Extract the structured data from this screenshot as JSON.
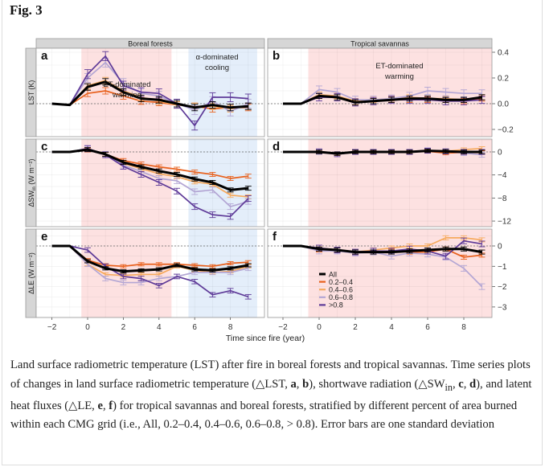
{
  "figure": {
    "title": "Fig. 3",
    "caption_parts": [
      "Land surface radiometric temperature (LST) after fire in boreal forests and tropical savannas. Time series plots of changes in land surface radiometric temperature (△LST, ",
      "a",
      ", ",
      "b",
      "), shortwave radiation (△SW",
      "in",
      ", ",
      "c",
      ", ",
      "d",
      "), and latent heat fluxes (△LE, ",
      "e",
      ", ",
      "f",
      ") for tropical savannas and boreal forests, stratified by different percent of area burned within each CMG grid (i.e., All, 0.2–0.4, 0.4–0.6, 0.6–0.8, > 0.8). Error bars are one standard deviation"
    ]
  },
  "chart_data": {
    "type": "line",
    "xlabel": "Time since fire (year)",
    "x": [
      -2,
      -1,
      0,
      1,
      2,
      3,
      4,
      5,
      6,
      7,
      8,
      9
    ],
    "x_ticks": [
      -2,
      0,
      2,
      4,
      6,
      8
    ],
    "x_tick_labels": [
      "−2",
      "0",
      "2",
      "4",
      "6",
      "8"
    ],
    "xlim": [
      -2.9,
      9.9
    ],
    "columns": [
      "Boreal forests",
      "Tropical savannas"
    ],
    "legend": {
      "placement": "inside panel f, lower-left",
      "entries": [
        {
          "name": "All",
          "color": "#000000"
        },
        {
          "name": "0.2–0.4",
          "color": "#e8601c"
        },
        {
          "name": "0.4–0.6",
          "color": "#f6aa5e"
        },
        {
          "name": "0.6–0.8",
          "color": "#b3a6d4"
        },
        {
          "name": ">0.8",
          "color": "#5e3a98"
        }
      ]
    },
    "shading": {
      "pink_color": "#fde1e1",
      "blue_color": "#e4eefa",
      "boreal_pink_range": [
        -0.35,
        4.7
      ],
      "boreal_blue_range": [
        5.65,
        9.5
      ],
      "savanna_pink_range": [
        -0.6,
        9.7
      ]
    },
    "rows": [
      {
        "ylabel": "LST (K)",
        "ylim": [
          -0.26,
          0.43
        ],
        "y_ticks": [
          0.4,
          0.2,
          0.0,
          -0.2
        ],
        "y_tick_labels": [
          "0.4",
          "0.2",
          "0.0",
          "−0.2"
        ],
        "panels": [
          {
            "letter": "a",
            "annotations": [
              {
                "lines": [
                  "ET-dominated",
                  "warming"
                ]
              },
              {
                "lines": [
                  "α-dominated",
                  "cooling"
                ]
              }
            ],
            "err": 0.025,
            "series": {
              "All": [
                0,
                -0.01,
                0.13,
                0.17,
                0.09,
                0.04,
                0.03,
                0.0,
                -0.03,
                -0.01,
                -0.03,
                -0.02
              ],
              "0.2–0.4": [
                0,
                -0.01,
                0.08,
                0.1,
                0.06,
                0.02,
                0.01,
                -0.01,
                -0.02,
                -0.04,
                -0.03,
                -0.03
              ],
              "0.4–0.6": [
                0,
                -0.01,
                0.14,
                0.18,
                0.1,
                0.05,
                0.02,
                -0.01,
                -0.02,
                -0.02,
                -0.04,
                -0.02
              ],
              "0.6–0.8": [
                0,
                -0.01,
                0.2,
                0.32,
                0.16,
                0.08,
                0.06,
                0.0,
                -0.05,
                0.02,
                -0.06,
                0.0
              ],
              ">0.8": [
                0,
                -0.01,
                0.23,
                0.37,
                0.14,
                0.09,
                0.08,
                0.0,
                -0.17,
                0.05,
                0.05,
                0.04
              ]
            }
          },
          {
            "letter": "b",
            "annotations": [
              {
                "lines": [
                  "ET-dominated",
                  "warming"
                ]
              }
            ],
            "err": 0.02,
            "series": {
              "All": [
                0,
                0,
                0.06,
                0.05,
                0.01,
                0.02,
                0.03,
                0.04,
                0.04,
                0.03,
                0.03,
                0.05
              ],
              "0.2–0.4": [
                0,
                0,
                0.06,
                0.06,
                0.01,
                0.02,
                0.03,
                0.03,
                0.03,
                0.03,
                0.02,
                0.04
              ],
              "0.4–0.6": [
                0,
                0,
                0.07,
                0.06,
                0.02,
                0.03,
                0.04,
                0.05,
                0.04,
                0.04,
                0.03,
                0.05
              ],
              "0.6–0.8": [
                0,
                0,
                0.11,
                0.09,
                0.03,
                0.03,
                0.04,
                0.06,
                0.1,
                0.09,
                0.08,
                0.08
              ],
              ">0.8": [
                0,
                0,
                0.05,
                0.05,
                0.01,
                0.02,
                0.03,
                0.03,
                0.03,
                0.02,
                0.02,
                0.03
              ]
            }
          }
        ]
      },
      {
        "ylabel": "ΔSW",
        "ylabel_sub": "in",
        "ylabel_unit": " (W m⁻²)",
        "ylim": [
          -13.2,
          2.3
        ],
        "y_ticks": [
          0,
          -4,
          -8,
          -12
        ],
        "y_tick_labels": [
          "0",
          "−4",
          "−8",
          "−12"
        ],
        "panels": [
          {
            "letter": "c",
            "err": 0.35,
            "series": {
              "All": [
                0,
                0,
                0.4,
                -0.4,
                -1.8,
                -2.6,
                -3.3,
                -3.9,
                -4.7,
                -5.3,
                -6.6,
                -6.3
              ],
              "0.2–0.4": [
                0,
                0,
                0.3,
                -0.4,
                -1.5,
                -2.1,
                -2.6,
                -3.0,
                -3.5,
                -3.9,
                -4.6,
                -4.2
              ],
              "0.4–0.6": [
                0,
                0,
                0.4,
                -0.4,
                -2.0,
                -2.9,
                -3.8,
                -4.3,
                -5.2,
                -5.6,
                -7.5,
                -7.8
              ],
              "0.6–0.8": [
                0,
                0,
                0.5,
                -0.4,
                -2.3,
                -3.4,
                -4.6,
                -5.0,
                -6.9,
                -6.6,
                -9.5,
                -8.6
              ],
              ">0.8": [
                0,
                0,
                0.6,
                -0.5,
                -2.5,
                -3.9,
                -5.3,
                -6.8,
                -9.5,
                -10.9,
                -11.2,
                -8.1
              ]
            }
          },
          {
            "letter": "d",
            "err": 0.3,
            "series": {
              "All": [
                0,
                0,
                0,
                -0.3,
                0,
                0,
                0,
                0,
                0.2,
                0.1,
                0,
                0
              ],
              "0.2–0.4": [
                0,
                0,
                0,
                -0.3,
                0,
                0,
                0,
                0,
                0.1,
                -0.2,
                -0.1,
                -0.1
              ],
              "0.4–0.6": [
                0,
                0,
                0.1,
                -0.3,
                0,
                0,
                0,
                0,
                0.2,
                0.1,
                0.4,
                0.6
              ],
              "0.6–0.8": [
                0,
                0,
                0,
                -0.4,
                0,
                0,
                0,
                0,
                0.3,
                0.1,
                -0.2,
                -0.5
              ],
              ">0.8": [
                0,
                0,
                0.1,
                -0.4,
                0,
                0,
                0,
                0,
                0.2,
                0.1,
                0,
                0
              ]
            }
          }
        ]
      },
      {
        "ylabel": "ΔLE (W m⁻²)",
        "ylim": [
          -3.5,
          0.6
        ],
        "y_ticks": [
          0,
          -1,
          -2,
          -3
        ],
        "y_tick_labels": [
          "0",
          "−1",
          "−2",
          "−3"
        ],
        "panels": [
          {
            "letter": "e",
            "err": 0.08,
            "series": {
              "All": [
                0,
                0,
                -0.75,
                -1.1,
                -1.25,
                -1.2,
                -1.15,
                -0.95,
                -1.15,
                -1.2,
                -1.1,
                -0.95
              ],
              "0.2–0.4": [
                0,
                0,
                -0.7,
                -0.95,
                -1.0,
                -0.9,
                -0.9,
                -0.9,
                -0.95,
                -1.0,
                -0.85,
                -0.8
              ],
              "0.4–0.6": [
                0,
                0,
                -0.9,
                -1.4,
                -1.45,
                -1.4,
                -1.4,
                -1.0,
                -1.2,
                -1.3,
                -1.25,
                -1.0
              ],
              "0.6–0.8": [
                0,
                0,
                -0.9,
                -1.6,
                -1.8,
                -1.8,
                -1.6,
                -1.5,
                -1.3,
                -1.3,
                -1.3,
                -1.1
              ],
              ">0.8": [
                0,
                0,
                -0.2,
                -1.0,
                -1.5,
                -1.6,
                -1.95,
                -1.5,
                -1.75,
                -2.4,
                -2.2,
                -2.5
              ]
            }
          },
          {
            "letter": "f",
            "err": 0.1,
            "series": {
              "All": [
                0,
                0,
                -0.15,
                -0.2,
                -0.3,
                -0.3,
                -0.3,
                -0.25,
                -0.2,
                -0.15,
                -0.15,
                -0.3
              ],
              "0.2–0.4": [
                0,
                0,
                -0.2,
                -0.2,
                -0.3,
                -0.3,
                -0.25,
                -0.3,
                -0.3,
                -0.15,
                -0.55,
                -0.45
              ],
              "0.4–0.6": [
                0,
                0,
                -0.15,
                -0.2,
                -0.3,
                -0.2,
                -0.1,
                0,
                0,
                0.4,
                0.4,
                0.3
              ],
              "0.6–0.8": [
                0,
                0,
                -0.25,
                -0.25,
                -0.35,
                -0.3,
                -0.5,
                -0.35,
                -0.4,
                -0.55,
                -1.1,
                -2.0
              ],
              ">0.8": [
                0,
                0,
                -0.1,
                -0.2,
                -0.3,
                -0.25,
                -0.25,
                -0.15,
                -0.25,
                -0.5,
                0.25,
                0.1
              ]
            }
          }
        ]
      }
    ]
  }
}
